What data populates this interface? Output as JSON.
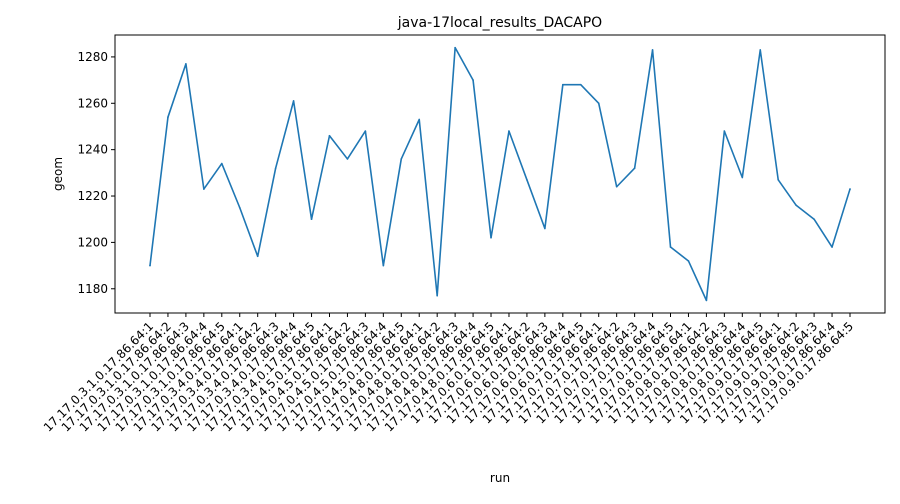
{
  "chart_data": {
    "type": "line",
    "title": "java-17local_results_DACAPO",
    "xlabel": "run",
    "ylabel": "geom",
    "ylim": [
      1169.55,
      1289.45
    ],
    "yticks": [
      1180,
      1200,
      1220,
      1240,
      1260,
      1280
    ],
    "grid": false,
    "line_color": "#1f77b4",
    "categories": [
      "17.17.0.3.1.0.17.86.64:1",
      "17.17.0.3.1.0.17.86.64:2",
      "17.17.0.3.1.0.17.86.64:3",
      "17.17.0.3.1.0.17.86.64:4",
      "17.17.0.3.1.0.17.86.64:5",
      "17.17.0.3.4.0.17.86.64:1",
      "17.17.0.3.4.0.17.86.64:2",
      "17.17.0.3.4.0.17.86.64:3",
      "17.17.0.3.4.0.17.86.64:4",
      "17.17.0.3.4.0.17.86.64:5",
      "17.17.0.4.5.0.17.86.64:1",
      "17.17.0.4.5.0.17.86.64:2",
      "17.17.0.4.5.0.17.86.64:3",
      "17.17.0.4.5.0.17.86.64:4",
      "17.17.0.4.5.0.17.86.64:5",
      "17.17.0.4.8.0.17.86.64:1",
      "17.17.0.4.8.0.17.86.64:2",
      "17.17.0.4.8.0.17.86.64:3",
      "17.17.0.4.8.0.17.86.64:4",
      "17.17.0.4.8.0.17.86.64:5",
      "17.17.0.6.0.17.86.64:1",
      "17.17.0.6.0.17.86.64:2",
      "17.17.0.6.0.17.86.64:3",
      "17.17.0.6.0.17.86.64:4",
      "17.17.0.6.0.17.86.64:5",
      "17.17.0.7.0.17.86.64:1",
      "17.17.0.7.0.17.86.64:2",
      "17.17.0.7.0.17.86.64:3",
      "17.17.0.7.0.17.86.64:4",
      "17.17.0.7.0.17.86.64:5",
      "17.17.0.8.0.17.86.64:1",
      "17.17.0.8.0.17.86.64:2",
      "17.17.0.8.0.17.86.64:3",
      "17.17.0.8.0.17.86.64:4",
      "17.17.0.8.0.17.86.64:5",
      "17.17.0.9.0.17.86.64:1",
      "17.17.0.9.0.17.86.64:2",
      "17.17.0.9.0.17.86.64:3",
      "17.17.0.9.0.17.86.64:4",
      "17.17.0.9.0.17.86.64:5"
    ],
    "values": [
      1190,
      1254,
      1277,
      1223,
      1234,
      1215,
      1194,
      1232,
      1261,
      1210,
      1246,
      1236,
      1248,
      1190,
      1236,
      1253,
      1177,
      1284,
      1270,
      1202,
      1248,
      1227,
      1206,
      1268,
      1268,
      1260,
      1224,
      1232,
      1283,
      1198,
      1192,
      1175,
      1248,
      1228,
      1283,
      1227,
      1216,
      1210,
      1198,
      1223
    ]
  }
}
